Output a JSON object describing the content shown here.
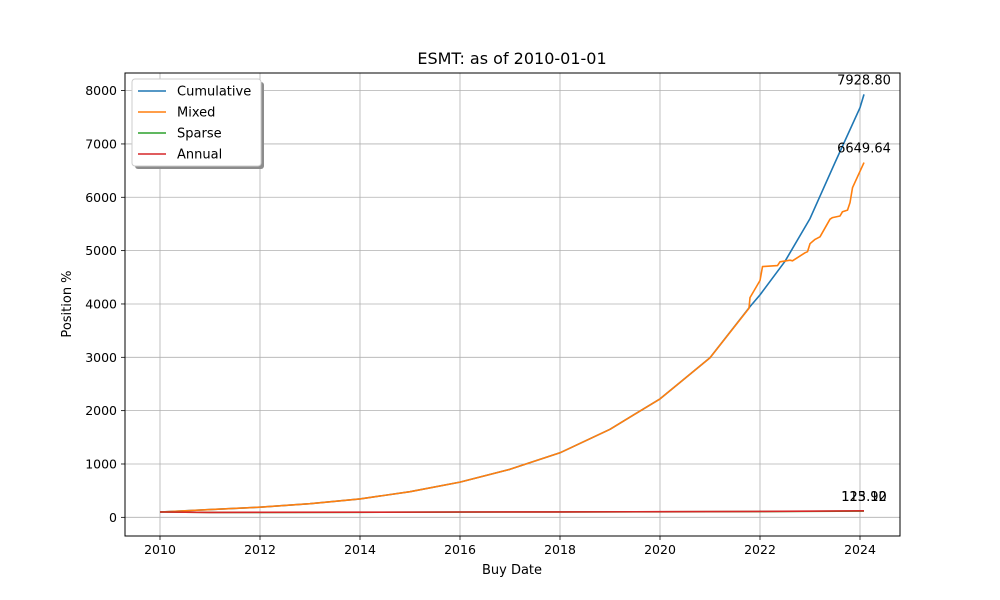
{
  "chart_data": {
    "type": "line",
    "title": "ESMT: as of 2010-01-01",
    "xlabel": "Buy Date",
    "ylabel": "Position %",
    "xlim": [
      2009.3,
      2024.8
    ],
    "ylim": [
      -350,
      8330
    ],
    "xticks": [
      2010,
      2012,
      2014,
      2016,
      2018,
      2020,
      2022,
      2024
    ],
    "xtick_labels": [
      "2010",
      "2012",
      "2014",
      "2016",
      "2018",
      "2020",
      "2022",
      "2024"
    ],
    "yticks": [
      0,
      1000,
      2000,
      3000,
      4000,
      5000,
      6000,
      7000,
      8000
    ],
    "ytick_labels": [
      "0",
      "1000",
      "2000",
      "3000",
      "4000",
      "5000",
      "6000",
      "7000",
      "8000"
    ],
    "grid": true,
    "legend_position": "top-left",
    "series": [
      {
        "name": "Cumulative",
        "color": "#1f77b4",
        "x": [
          2010,
          2011,
          2012,
          2013,
          2014,
          2015,
          2016,
          2017,
          2018,
          2019,
          2020,
          2021,
          2021.8,
          2022,
          2022.5,
          2023,
          2023.5,
          2024,
          2024.08
        ],
        "y": [
          100,
          145,
          190,
          255,
          345,
          480,
          660,
          900,
          1210,
          1650,
          2220,
          2990,
          3950,
          4170,
          4800,
          5600,
          6650,
          7680,
          7928.8
        ]
      },
      {
        "name": "Mixed",
        "color": "#ff7f0e",
        "x": [
          2010,
          2011,
          2012,
          2013,
          2014,
          2015,
          2016,
          2017,
          2018,
          2019,
          2020,
          2021,
          2021.78,
          2021.8,
          2022.0,
          2022.05,
          2022.35,
          2022.4,
          2022.6,
          2022.65,
          2022.9,
          2022.95,
          2023.0,
          2023.1,
          2023.2,
          2023.4,
          2023.45,
          2023.6,
          2023.65,
          2023.75,
          2023.8,
          2023.85,
          2024.08
        ],
        "y": [
          100,
          145,
          190,
          255,
          345,
          480,
          660,
          900,
          1210,
          1650,
          2220,
          2990,
          3920,
          4120,
          4440,
          4700,
          4720,
          4790,
          4820,
          4810,
          4960,
          4980,
          5130,
          5210,
          5260,
          5590,
          5620,
          5650,
          5730,
          5760,
          5900,
          6180,
          6649.64
        ]
      },
      {
        "name": "Sparse",
        "color": "#2ca02c",
        "x": [
          2010,
          2011,
          2012,
          2014,
          2016,
          2018,
          2020,
          2022,
          2024.08
        ],
        "y": [
          100,
          92,
          93,
          95,
          98,
          101,
          104,
          108,
          115.9
        ]
      },
      {
        "name": "Annual",
        "color": "#d62728",
        "x": [
          2010,
          2011,
          2012,
          2014,
          2016,
          2018,
          2020,
          2022,
          2024.08
        ],
        "y": [
          100,
          93,
          94,
          96,
          99,
          102,
          106,
          112,
          123.12
        ]
      }
    ],
    "annotations": [
      {
        "text": "7928.80",
        "x": 2024.08,
        "y": 7928.8
      },
      {
        "text": "6649.64",
        "x": 2024.08,
        "y": 6649.64
      },
      {
        "text": "115.90",
        "x": 2024.08,
        "y": 115.9
      },
      {
        "text": "123.12",
        "x": 2024.08,
        "y": 123.12
      }
    ]
  }
}
